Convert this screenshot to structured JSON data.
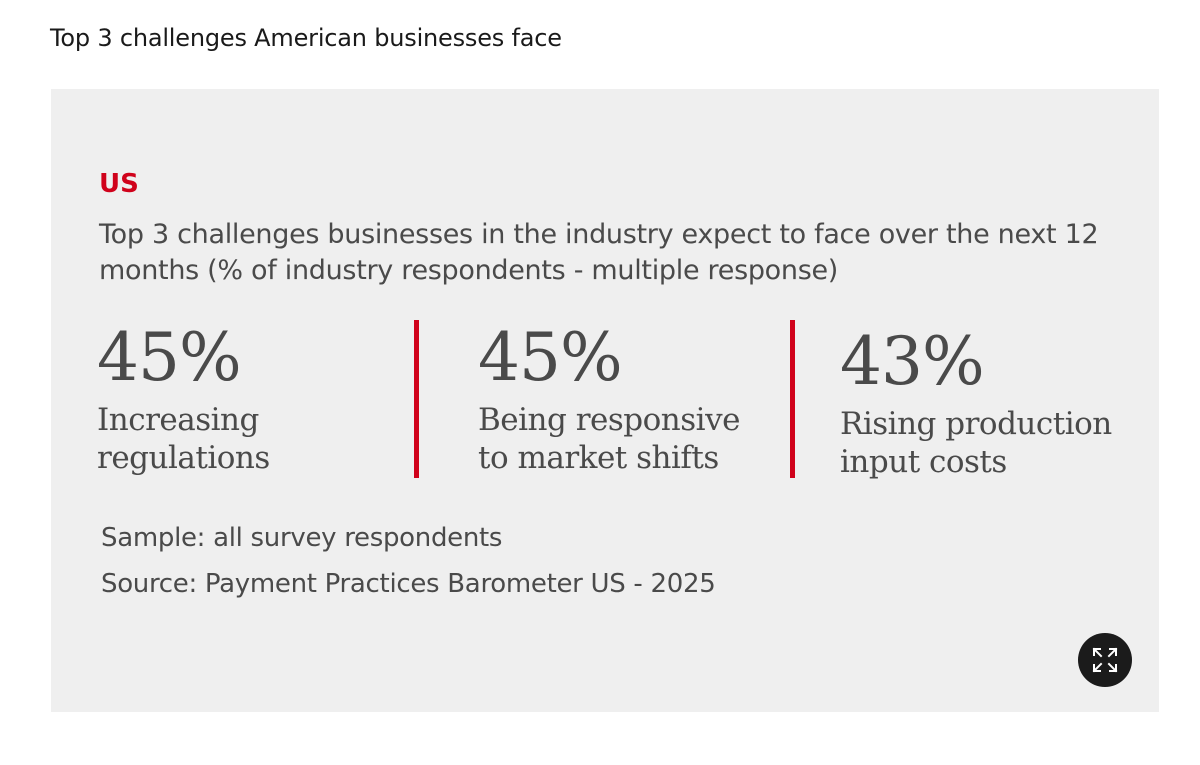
{
  "page": {
    "heading": "Top 3 challenges American businesses face"
  },
  "infographic": {
    "region": "US",
    "subtitle": "Top 3 challenges businesses in the industry expect to face over the next 12 months (% of industry respondents - multiple response)",
    "sample": "Sample: all survey respondents",
    "source": "Source: Payment Practices Barometer US - 2025",
    "expand_icon": "expand-icon"
  },
  "colors": {
    "accent": "#d0021b",
    "text": "#4a4a4a",
    "card_bg": "#efefef",
    "button_bg": "#1b1b1b"
  },
  "chart_data": {
    "type": "table",
    "title": "Top 3 challenges businesses in the industry expect to face over the next 12 months (% of industry respondents - multiple response)",
    "unit": "%",
    "categories": [
      "Increasing regulations",
      "Being responsive to market shifts",
      "Rising production input costs"
    ],
    "values": [
      45,
      45,
      43
    ],
    "value_labels": [
      "45%",
      "45%",
      "43%"
    ],
    "label_lines": [
      [
        "Increasing",
        "regulations"
      ],
      [
        "Being responsive",
        "to market shifts"
      ],
      [
        "Rising production",
        "input costs"
      ]
    ]
  }
}
